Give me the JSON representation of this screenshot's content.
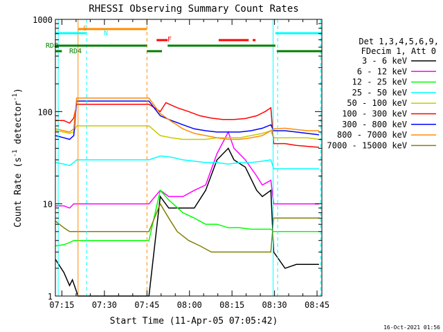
{
  "chart_data": {
    "type": "line",
    "title": "RHESSI Observing Summary Count Rates",
    "xlabel": "Start Time (11-Apr-05 07:05:42)",
    "ylabel_parts": [
      "Count Rate (s",
      "-1",
      " detector",
      "-1",
      ")"
    ],
    "y_scale": "log",
    "ylim": [
      1,
      1000
    ],
    "xlim_minutes": [
      7.0,
      101.0
    ],
    "x_tick_labels": [
      "07:15",
      "07:30",
      "07:45",
      "08:00",
      "08:15",
      "08:30",
      "08:45"
    ],
    "x_tick_minutes": [
      9.3,
      24.3,
      39.3,
      54.3,
      69.3,
      84.3,
      99.3
    ],
    "y_tick_labels": [
      "1",
      "10",
      "100",
      "1000"
    ],
    "y_tick_values": [
      1,
      10,
      100,
      1000
    ],
    "timestamp": "16-Oct-2021 01:56",
    "legend_header": [
      "Det 1,3,4,5,6,9,",
      "FDecim 1, Att 0"
    ],
    "legend_position": "right",
    "series": [
      {
        "name": "3 - 6 keV",
        "color": "#000000",
        "values": [
          [
            7,
            2.5
          ],
          [
            10,
            1.8
          ],
          [
            12,
            1.3
          ],
          [
            13,
            1.5
          ],
          [
            15,
            1
          ],
          [
            40,
            1
          ],
          [
            44,
            12
          ],
          [
            47,
            9
          ],
          [
            52,
            9
          ],
          [
            56,
            9
          ],
          [
            60,
            14
          ],
          [
            64,
            30
          ],
          [
            68,
            40
          ],
          [
            70,
            30
          ],
          [
            74,
            25
          ],
          [
            78,
            14
          ],
          [
            80,
            12
          ],
          [
            83,
            14
          ],
          [
            84,
            3
          ],
          [
            88,
            2
          ],
          [
            92,
            2.2
          ],
          [
            96,
            2.2
          ],
          [
            100,
            2.2
          ]
        ]
      },
      {
        "name": "6 - 12 keV",
        "color": "#ff00ff",
        "values": [
          [
            7,
            9.5
          ],
          [
            10,
            9.5
          ],
          [
            12,
            9
          ],
          [
            13.5,
            10
          ],
          [
            14.5,
            10
          ],
          [
            15,
            10
          ],
          [
            40,
            10
          ],
          [
            44,
            14
          ],
          [
            47,
            12
          ],
          [
            52,
            12
          ],
          [
            56,
            14
          ],
          [
            60,
            16
          ],
          [
            64,
            35
          ],
          [
            68,
            60
          ],
          [
            70,
            40
          ],
          [
            74,
            30
          ],
          [
            78,
            20
          ],
          [
            80,
            16
          ],
          [
            83,
            18
          ],
          [
            84,
            10
          ],
          [
            88,
            10
          ],
          [
            92,
            10
          ],
          [
            96,
            10
          ],
          [
            100,
            10
          ]
        ]
      },
      {
        "name": "12 - 25 keV",
        "color": "#00ff00",
        "values": [
          [
            7,
            3.5
          ],
          [
            10,
            3.6
          ],
          [
            12,
            3.8
          ],
          [
            13.5,
            4
          ],
          [
            14.5,
            4
          ],
          [
            15,
            4
          ],
          [
            40,
            4
          ],
          [
            44,
            14
          ],
          [
            47,
            11
          ],
          [
            52,
            8
          ],
          [
            56,
            7
          ],
          [
            60,
            6
          ],
          [
            64,
            6
          ],
          [
            68,
            5.5
          ],
          [
            72,
            5.5
          ],
          [
            76,
            5.3
          ],
          [
            80,
            5.3
          ],
          [
            83,
            5.3
          ],
          [
            84,
            5
          ],
          [
            88,
            5
          ],
          [
            92,
            5
          ],
          [
            96,
            5
          ],
          [
            100,
            5
          ]
        ]
      },
      {
        "name": "25 - 50 keV",
        "color": "#00ffff",
        "values": [
          [
            7,
            28
          ],
          [
            10,
            27
          ],
          [
            12,
            26
          ],
          [
            13.5,
            28
          ],
          [
            14.5,
            30
          ],
          [
            15,
            30
          ],
          [
            40,
            30
          ],
          [
            44,
            33
          ],
          [
            48,
            32
          ],
          [
            52,
            30
          ],
          [
            56,
            29
          ],
          [
            60,
            28
          ],
          [
            64,
            28
          ],
          [
            68,
            27
          ],
          [
            72,
            28
          ],
          [
            76,
            28
          ],
          [
            80,
            29
          ],
          [
            83,
            30
          ],
          [
            84,
            24
          ],
          [
            88,
            24
          ],
          [
            92,
            24
          ],
          [
            96,
            24
          ],
          [
            100,
            24
          ]
        ]
      },
      {
        "name": "50 - 100 keV",
        "color": "#c8c800",
        "values": [
          [
            7,
            62
          ],
          [
            10,
            60
          ],
          [
            12,
            58
          ],
          [
            13.5,
            60
          ],
          [
            14.5,
            70
          ],
          [
            15,
            70
          ],
          [
            40,
            70
          ],
          [
            44,
            55
          ],
          [
            48,
            52
          ],
          [
            52,
            50
          ],
          [
            56,
            50
          ],
          [
            60,
            50
          ],
          [
            64,
            52
          ],
          [
            68,
            52
          ],
          [
            72,
            52
          ],
          [
            76,
            55
          ],
          [
            80,
            58
          ],
          [
            83,
            62
          ],
          [
            84,
            52
          ],
          [
            88,
            52
          ],
          [
            92,
            52
          ],
          [
            96,
            52
          ],
          [
            100,
            50
          ]
        ]
      },
      {
        "name": "100 - 300 keV",
        "color": "#ff0000",
        "values": [
          [
            7,
            80
          ],
          [
            10,
            80
          ],
          [
            12,
            75
          ],
          [
            13.5,
            85
          ],
          [
            14.5,
            120
          ],
          [
            15,
            120
          ],
          [
            40,
            120
          ],
          [
            44,
            100
          ],
          [
            46,
            125
          ],
          [
            50,
            110
          ],
          [
            54,
            100
          ],
          [
            58,
            90
          ],
          [
            62,
            85
          ],
          [
            66,
            82
          ],
          [
            70,
            82
          ],
          [
            74,
            84
          ],
          [
            78,
            90
          ],
          [
            81,
            100
          ],
          [
            83,
            110
          ],
          [
            84,
            45
          ],
          [
            88,
            45
          ],
          [
            92,
            43
          ],
          [
            96,
            42
          ],
          [
            100,
            41
          ]
        ]
      },
      {
        "name": "300 - 800 keV",
        "color": "#0000ff",
        "values": [
          [
            7,
            55
          ],
          [
            10,
            52
          ],
          [
            12,
            50
          ],
          [
            13.5,
            55
          ],
          [
            14.5,
            130
          ],
          [
            15,
            130
          ],
          [
            40,
            130
          ],
          [
            44,
            90
          ],
          [
            48,
            80
          ],
          [
            52,
            72
          ],
          [
            56,
            65
          ],
          [
            60,
            62
          ],
          [
            64,
            60
          ],
          [
            68,
            60
          ],
          [
            72,
            60
          ],
          [
            76,
            62
          ],
          [
            80,
            66
          ],
          [
            83,
            72
          ],
          [
            84,
            62
          ],
          [
            88,
            62
          ],
          [
            92,
            60
          ],
          [
            96,
            58
          ],
          [
            100,
            56
          ]
        ]
      },
      {
        "name": "800 - 7000 keV",
        "color": "#ff8c00",
        "values": [
          [
            7,
            65
          ],
          [
            10,
            62
          ],
          [
            12,
            60
          ],
          [
            13.5,
            65
          ],
          [
            14.5,
            140
          ],
          [
            15,
            140
          ],
          [
            40,
            140
          ],
          [
            44,
            95
          ],
          [
            48,
            78
          ],
          [
            52,
            65
          ],
          [
            56,
            58
          ],
          [
            60,
            55
          ],
          [
            64,
            52
          ],
          [
            68,
            50
          ],
          [
            72,
            50
          ],
          [
            76,
            52
          ],
          [
            80,
            55
          ],
          [
            83,
            62
          ],
          [
            84,
            65
          ],
          [
            88,
            66
          ],
          [
            92,
            64
          ],
          [
            96,
            62
          ],
          [
            100,
            62
          ]
        ]
      },
      {
        "name": "7000 - 15000 keV",
        "color": "#808000",
        "values": [
          [
            7,
            6.5
          ],
          [
            10,
            5.5
          ],
          [
            12,
            5
          ],
          [
            13.5,
            5
          ],
          [
            14.5,
            5
          ],
          [
            15,
            5
          ],
          [
            40,
            5
          ],
          [
            44,
            10
          ],
          [
            47,
            7
          ],
          [
            50,
            5
          ],
          [
            54,
            4
          ],
          [
            58,
            3.5
          ],
          [
            62,
            3
          ],
          [
            66,
            3
          ],
          [
            70,
            3
          ],
          [
            74,
            3
          ],
          [
            78,
            3
          ],
          [
            83,
            3
          ],
          [
            84,
            7
          ],
          [
            88,
            7
          ],
          [
            92,
            7
          ],
          [
            96,
            7
          ],
          [
            100,
            7
          ]
        ]
      }
    ],
    "flags": [
      {
        "label": "S",
        "color": "#ff8c00",
        "segments": [
          [
            15,
            39.3
          ]
        ]
      },
      {
        "label": "N",
        "color": "#00ffff",
        "segments": [
          [
            7,
            17.8
          ],
          [
            84.6,
            101
          ]
        ]
      },
      {
        "label": "F",
        "color": "#ff0000",
        "segments": [
          [
            42.7,
            46.6
          ],
          [
            64.6,
            75.2
          ],
          [
            76.6,
            77.6
          ]
        ]
      },
      {
        "label": "RD8",
        "color": "#008000",
        "segments": [
          [
            7,
            39.3
          ],
          [
            46.6,
            84.6
          ]
        ]
      },
      {
        "label": "RD4",
        "color": "#008000",
        "segments": [
          [
            7,
            9.3
          ],
          [
            39.3,
            44.6
          ],
          [
            85.1,
            101
          ]
        ]
      }
    ],
    "vertical_lines": [
      {
        "x": 8.0,
        "color": "#00ffff",
        "style": "solid"
      },
      {
        "x": 15.0,
        "color": "#ff8c00",
        "style": "solid"
      },
      {
        "x": 18.0,
        "color": "#00ffff",
        "style": "dashed"
      },
      {
        "x": 39.3,
        "color": "#ff8c00",
        "style": "dashed"
      },
      {
        "x": 83.8,
        "color": "#00ffff",
        "style": "solid"
      },
      {
        "x": 85.4,
        "color": "#00ffff",
        "style": "dashed"
      },
      {
        "x": 100.6,
        "color": "#00ffff",
        "style": "dashed"
      }
    ]
  }
}
